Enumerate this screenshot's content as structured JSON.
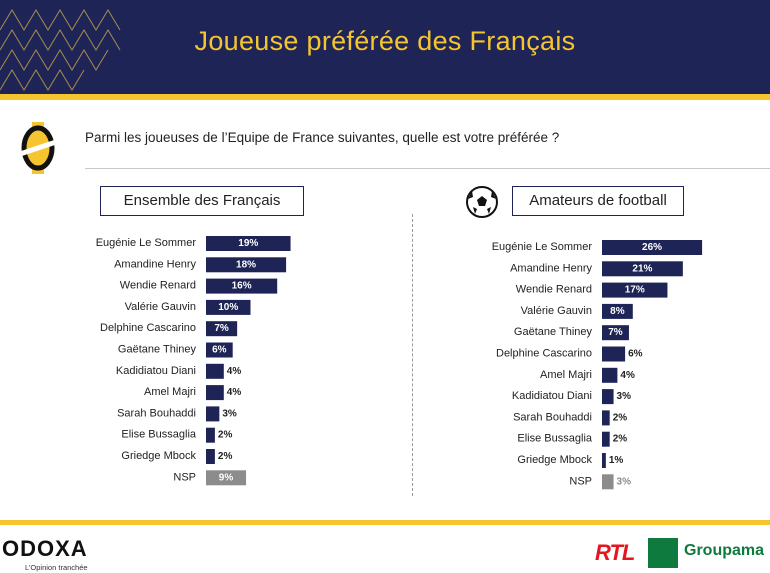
{
  "header": {
    "title": "Joueuse préférée des Français"
  },
  "question": "Parmi les joueuses de l’Equipe de France suivantes, quelle est votre préférée ?",
  "colors": {
    "bar": "#1e2456",
    "nsp": "#8c8c8c",
    "gold": "#f5c530"
  },
  "icons": {
    "question": "coin-icon",
    "ball": "football-icon"
  },
  "footer": {
    "odoxa": "ODOXA",
    "odoxa_tagline": "L’Opinion tranchée",
    "rtl": "RTL",
    "groupama": "Groupama"
  },
  "chart_data": [
    {
      "type": "bar",
      "orientation": "horizontal",
      "title": "Ensemble des Français",
      "categories": [
        "Eugénie Le Sommer",
        "Amandine Henry",
        "Wendie Renard",
        "Valérie Gauvin",
        "Delphine Cascarino",
        "Gaëtane Thiney",
        "Kadidiatou Diani",
        "Amel Majri",
        "Sarah Bouhaddi",
        "Elise Bussaglia",
        "Griedge Mbock",
        "NSP"
      ],
      "values": [
        19,
        18,
        16,
        10,
        7,
        6,
        4,
        4,
        3,
        2,
        2,
        9
      ],
      "labels": [
        "19%",
        "18%",
        "16%",
        "10%",
        "7%",
        "6%",
        "4%",
        "4%",
        "3%",
        "2%",
        "2%",
        "9%"
      ]
    },
    {
      "type": "bar",
      "orientation": "horizontal",
      "title": "Amateurs de football",
      "categories": [
        "Eugénie Le Sommer",
        "Amandine Henry",
        "Wendie Renard",
        "Valérie Gauvin",
        "Gaëtane Thiney",
        "Delphine Cascarino",
        "Amel Majri",
        "Kadidiatou Diani",
        "Sarah Bouhaddi",
        "Elise Bussaglia",
        "Griedge Mbock",
        "NSP"
      ],
      "values": [
        26,
        21,
        17,
        8,
        7,
        6,
        4,
        3,
        2,
        2,
        1,
        3
      ],
      "labels": [
        "26%",
        "21%",
        "17%",
        "8%",
        "7%",
        "6%",
        "4%",
        "3%",
        "2%",
        "2%",
        "1%",
        "3%"
      ]
    }
  ]
}
